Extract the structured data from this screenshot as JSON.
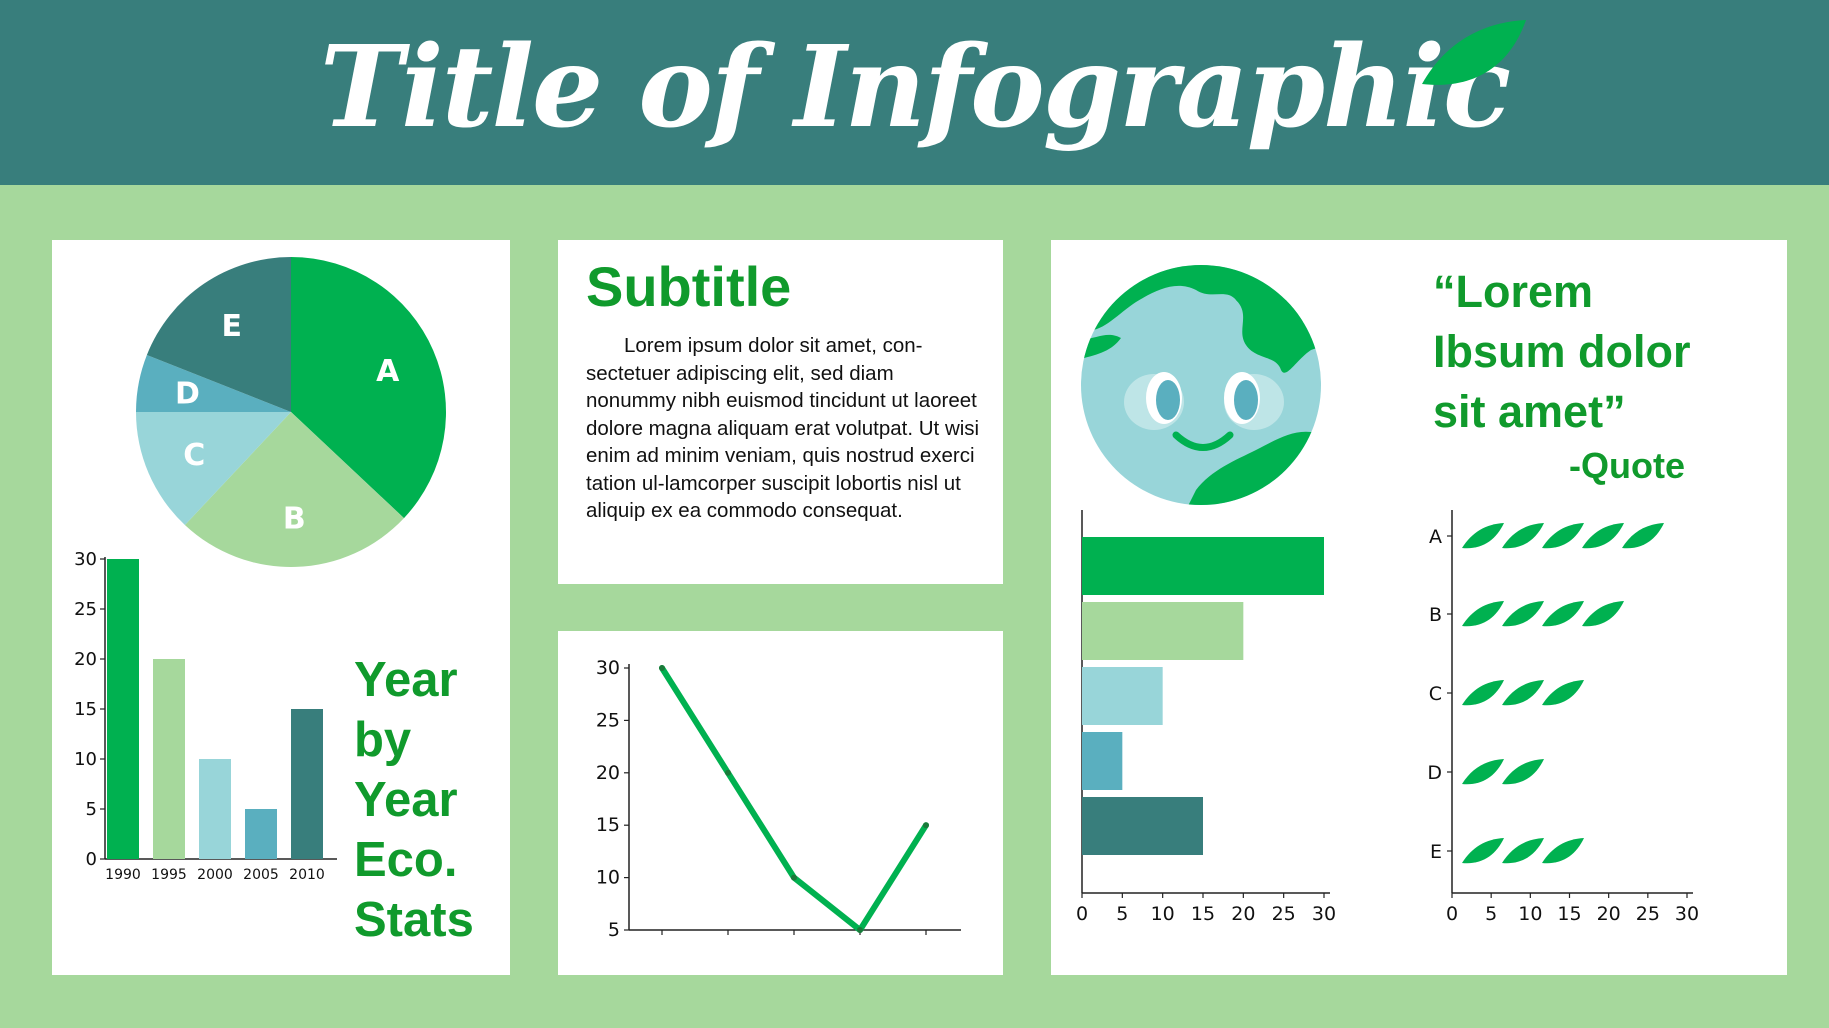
{
  "header": {
    "title": "Title of Infographic",
    "bg": "#387e7c",
    "leaf_color": "#00b150"
  },
  "colors": {
    "green": "#00b150",
    "light_green": "#a6d89c",
    "pale_teal": "#98d5d9",
    "teal": "#5aafbf",
    "dark_teal": "#387e7c",
    "text_green": "#109a2c"
  },
  "text_panel": {
    "subtitle": "Subtitle",
    "paragraph": "Lorem ipsum dolor sit amet, con-sectetuer adipiscing elit, sed diam nonummy nibh euismod tincidunt ut laoreet dolore magna aliquam erat volutpat. Ut wisi enim ad minim veniam, quis nostrud exerci tation ul-lamcorper suscipit lobortis nisl ut aliquip ex ea commodo consequat."
  },
  "stats_label": [
    "Year",
    "by",
    "Year",
    "Eco.",
    "Stats"
  ],
  "quote": {
    "lines": [
      "“Lorem",
      "Ibsum dolor",
      "sit amet”"
    ],
    "attribution": "-Quote"
  },
  "chart_data": [
    {
      "type": "pie",
      "categories": [
        "A",
        "B",
        "C",
        "D",
        "E"
      ],
      "values": [
        37,
        25,
        13,
        6,
        19
      ],
      "colors": [
        "#00b150",
        "#a6d89c",
        "#98d5d9",
        "#5aafbf",
        "#387e7c"
      ]
    },
    {
      "type": "bar",
      "categories": [
        "1990",
        "1995",
        "2000",
        "2005",
        "2010"
      ],
      "values": [
        30,
        20,
        10,
        5,
        15
      ],
      "yticks": [
        0,
        5,
        10,
        15,
        20,
        25,
        30
      ],
      "ylim": [
        0,
        30
      ],
      "colors": [
        "#00b150",
        "#a6d89c",
        "#98d5d9",
        "#5aafbf",
        "#387e7c"
      ]
    },
    {
      "type": "line",
      "x": [
        1,
        2,
        3,
        4,
        5
      ],
      "values": [
        30,
        20,
        10,
        5,
        15
      ],
      "yticks": [
        5,
        10,
        15,
        20,
        25,
        30
      ],
      "ylim": [
        5,
        30
      ],
      "color": "#00b150"
    },
    {
      "type": "bar",
      "orientation": "horizontal",
      "values": [
        30,
        20,
        10,
        5,
        15
      ],
      "xticks": [
        0,
        5,
        10,
        15,
        20,
        25,
        30
      ],
      "xlim": [
        0,
        30
      ],
      "colors": [
        "#00b150",
        "#a6d89c",
        "#98d5d9",
        "#5aafbf",
        "#387e7c"
      ]
    },
    {
      "type": "bar",
      "orientation": "horizontal",
      "style": "pictogram-leaves",
      "categories": [
        "A",
        "B",
        "C",
        "D",
        "E"
      ],
      "values": [
        5,
        4,
        3,
        2,
        3
      ],
      "xticks": [
        0,
        5,
        10,
        15,
        20,
        25,
        30
      ],
      "xlim": [
        0,
        30
      ],
      "color": "#00b150"
    }
  ]
}
